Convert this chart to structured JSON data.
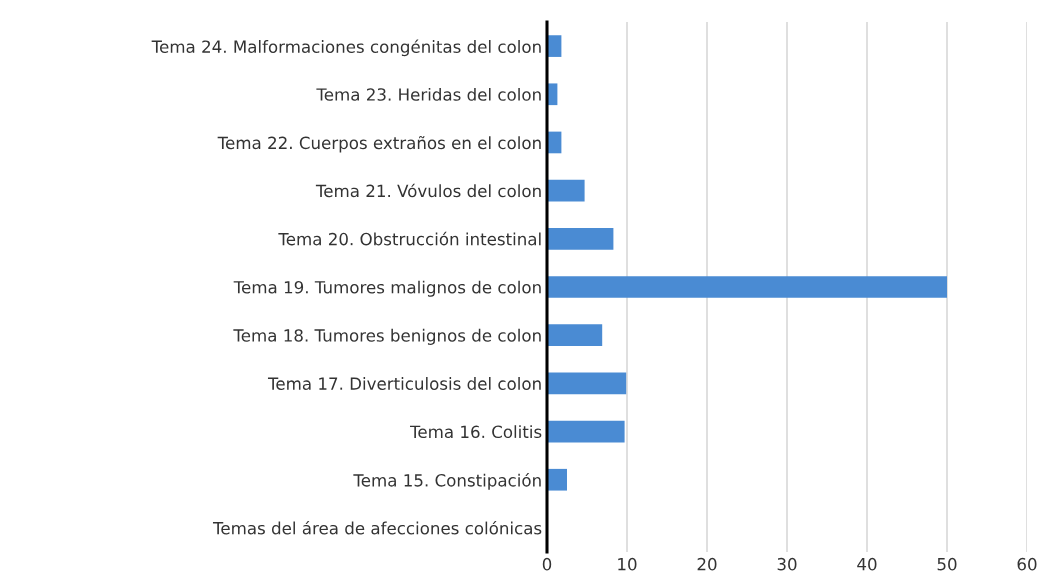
{
  "chart_data": {
    "type": "bar",
    "orientation": "horizontal",
    "categories": [
      "Tema 24. Malformaciones congénitas del colon",
      "Tema 23. Heridas del colon",
      "Tema 22. Cuerpos extraños en el colon",
      "Tema 21. Vóvulos del colon",
      "Tema 20. Obstrucción intestinal",
      "Tema 19. Tumores malignos de colon",
      "Tema 18. Tumores benignos de colon",
      "Tema 17. Diverticulosis del colon",
      "Tema 16. Colitis",
      "Tema 15. Constipación",
      "Temas del área de afecciones colónicas"
    ],
    "values": [
      1.8,
      1.3,
      1.8,
      4.7,
      8.3,
      50,
      6.9,
      9.9,
      9.7,
      2.5,
      0
    ],
    "color": "#4a8bd3",
    "xlim": [
      0,
      60
    ],
    "xticks": [
      0,
      10,
      20,
      30,
      40,
      50,
      60
    ],
    "grid": "x",
    "legend": false
  }
}
